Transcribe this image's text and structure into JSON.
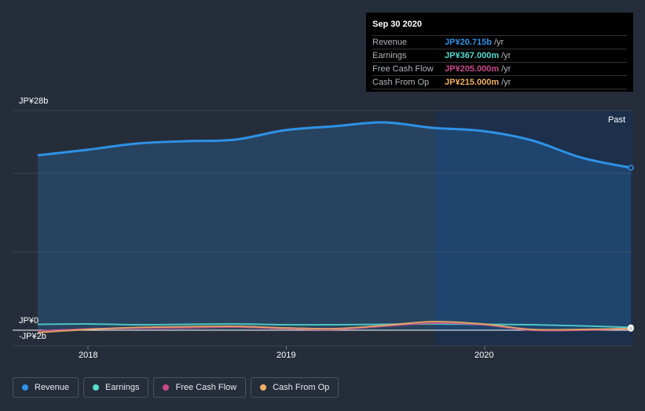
{
  "tooltip": {
    "date": "Sep 30 2020",
    "rows": [
      {
        "label": "Revenue",
        "value": "JP¥20.715b",
        "unit": "/yr",
        "color": "#2e92e6"
      },
      {
        "label": "Earnings",
        "value": "JP¥367.000m",
        "unit": "/yr",
        "color": "#56dbcf"
      },
      {
        "label": "Free Cash Flow",
        "value": "JP¥205.000m",
        "unit": "/yr",
        "color": "#c94a8c"
      },
      {
        "label": "Cash From Op",
        "value": "JP¥215.000m",
        "unit": "/yr",
        "color": "#f0b064"
      }
    ]
  },
  "past_label": "Past",
  "legend": [
    {
      "label": "Revenue",
      "color": "#2e92e6"
    },
    {
      "label": "Earnings",
      "color": "#56dbcf"
    },
    {
      "label": "Free Cash Flow",
      "color": "#c94a8c"
    },
    {
      "label": "Cash From Op",
      "color": "#f0b064"
    }
  ],
  "chart_data": {
    "type": "area",
    "title": "",
    "xlabel": "",
    "ylabel": "",
    "y_unit": "JP¥ billions",
    "ylim": [
      -2,
      28
    ],
    "y_tick_labels": [
      "JP¥28b",
      "JP¥0",
      "-JP¥2b"
    ],
    "y_tick_values": [
      28,
      0,
      -2
    ],
    "x_ticks": [
      {
        "label": "2018",
        "value": 2018.0
      },
      {
        "label": "2019",
        "value": 2019.0
      },
      {
        "label": "2020",
        "value": 2020.0
      }
    ],
    "xlim": [
      2017.7,
      2020.75
    ],
    "past_region_start": 2019.75,
    "x": [
      2017.75,
      2018.0,
      2018.25,
      2018.5,
      2018.75,
      2019.0,
      2019.25,
      2019.5,
      2019.75,
      2020.0,
      2020.25,
      2020.5,
      2020.75
    ],
    "series": [
      {
        "name": "Revenue",
        "color": "#2e92e6",
        "values": [
          22.3,
          23.0,
          23.8,
          24.1,
          24.3,
          25.5,
          26.0,
          26.5,
          25.8,
          25.4,
          24.2,
          22.0,
          20.715
        ]
      },
      {
        "name": "Earnings",
        "color": "#56dbcf",
        "values": [
          0.75,
          0.8,
          0.7,
          0.75,
          0.8,
          0.7,
          0.7,
          0.75,
          0.8,
          0.75,
          0.7,
          0.55,
          0.367
        ]
      },
      {
        "name": "Free Cash Flow",
        "color": "#c94a8c",
        "values": [
          -0.1,
          0.15,
          0.25,
          0.3,
          0.4,
          0.2,
          0.1,
          0.5,
          0.9,
          0.7,
          0.0,
          0.0,
          0.205
        ]
      },
      {
        "name": "Cash From Op",
        "color": "#f0b064",
        "values": [
          -0.3,
          0.1,
          0.35,
          0.45,
          0.5,
          0.3,
          0.2,
          0.6,
          1.1,
          0.8,
          0.1,
          0.1,
          0.215
        ]
      }
    ]
  }
}
